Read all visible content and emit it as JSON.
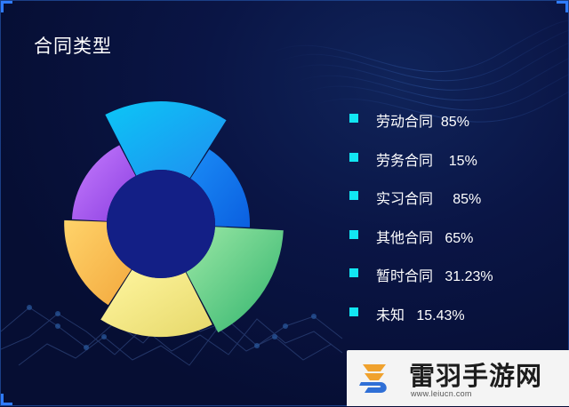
{
  "panel": {
    "title": "合同类型"
  },
  "chart_data": {
    "type": "pie",
    "variant": "rose-donut",
    "title": "合同类型",
    "legend_position": "right",
    "inner_radius_ratio": 0.3,
    "series": [
      {
        "name": "劳动合同",
        "value_label": "85%",
        "value": 85,
        "color": "#0cc6f6",
        "color_end": "#1f8ef0"
      },
      {
        "name": "劳务合同",
        "value_label": "15%",
        "value": 15,
        "color": "#1a8cf6",
        "color_end": "#0b5fe0"
      },
      {
        "name": "实习合同",
        "value_label": "85%",
        "value": 85,
        "color": "#9ce8a6",
        "color_end": "#2fb36c"
      },
      {
        "name": "其他合同",
        "value_label": "65%",
        "value": 65,
        "color": "#fff6a0",
        "color_end": "#e6d86a"
      },
      {
        "name": "暂时合同",
        "value_label": "31.23%",
        "value": 31.23,
        "color": "#ffd36a",
        "color_end": "#f3a93e"
      },
      {
        "name": "未知",
        "value_label": "15.43%",
        "value": 15.43,
        "color": "#c77dff",
        "color_end": "#8b3fe0"
      }
    ],
    "center_color": "#131f86"
  },
  "legend": {
    "items": [
      {
        "label": "劳动合同  85%"
      },
      {
        "label": "劳务合同    15%"
      },
      {
        "label": "实习合同     85%"
      },
      {
        "label": "其他合同   65%"
      },
      {
        "label": "暂时合同   31.23%"
      },
      {
        "label": "未知   15.43%"
      }
    ],
    "swatch_color": "#12e6f2"
  },
  "watermark": {
    "name": "雷羽手游网",
    "url": "www.leiucn.com"
  }
}
